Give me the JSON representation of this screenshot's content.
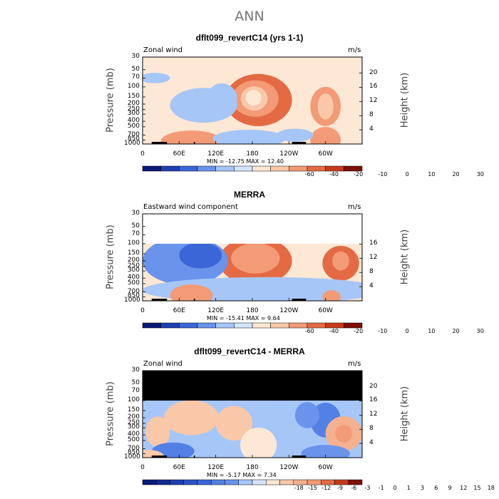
{
  "title": "ANN",
  "chart_data": [
    {
      "type": "heatmap",
      "title": "dflt099_revertC14 (yrs 1-1)",
      "corner_left": "Zonal wind",
      "corner_right": "m/s",
      "ylabel": "Pressure (mb)",
      "ylabel_right": "Height (km)",
      "xticks": [
        "0",
        "60E",
        "120E",
        "180",
        "120W",
        "60W"
      ],
      "yticks": [
        "30",
        "50",
        "70",
        "100",
        "150",
        "200",
        "250",
        "300",
        "400",
        "500",
        "700",
        "850",
        "1000"
      ],
      "height_ticks": [
        "20",
        "16",
        "12",
        "8",
        "4"
      ],
      "min_label": "MIN = -12.75   MAX =  12.40",
      "colorbar_ticks": [
        "-60",
        "-40",
        "-20",
        "-10",
        "0",
        "10",
        "20",
        "30"
      ],
      "colors": [
        "#0a1a7a",
        "#1f3fb0",
        "#3a66d8",
        "#6a93ec",
        "#a6c6f8",
        "#d3e6fc",
        "#fde7d5",
        "#f9c8a9",
        "#f29b76",
        "#e46a43",
        "#c63a1c",
        "#7d0f05"
      ],
      "no_data_top": false,
      "blobs": [
        {
          "lon": 190,
          "p": 170,
          "level": 4,
          "rlon": 55,
          "rp": 0.6
        },
        {
          "lon": 185,
          "p": 160,
          "level": 3,
          "rlon": 38,
          "rp": 0.42
        },
        {
          "lon": 183,
          "p": 160,
          "level": 2,
          "rlon": 22,
          "rp": 0.28
        },
        {
          "lon": 182,
          "p": 155,
          "level": 1,
          "rlon": 13,
          "rp": 0.18
        },
        {
          "lon": 300,
          "p": 220,
          "level": 3,
          "rlon": 25,
          "rp": 0.45
        },
        {
          "lon": 300,
          "p": 220,
          "level": 2,
          "rlon": 13,
          "rp": 0.3
        },
        {
          "lon": 100,
          "p": 210,
          "level": -1,
          "rlon": 55,
          "rp": 0.4
        },
        {
          "lon": 130,
          "p": 160,
          "level": -1,
          "rlon": 25,
          "rp": 0.35
        },
        {
          "lon": 20,
          "p": 70,
          "level": -1,
          "rlon": 25,
          "rp": 0.12
        },
        {
          "lon": 80,
          "p": 900,
          "level": 3,
          "rlon": 50,
          "rp": 0.25
        },
        {
          "lon": 175,
          "p": 800,
          "level": -1,
          "rlon": 60,
          "rp": 0.2
        },
        {
          "lon": 300,
          "p": 850,
          "level": 3,
          "rlon": 25,
          "rp": 0.3
        },
        {
          "lon": 250,
          "p": 700,
          "level": -1,
          "rlon": 30,
          "rp": 0.15
        }
      ],
      "base_level": 3
    },
    {
      "type": "heatmap",
      "title": "MERRA",
      "corner_left": "Eastward wind component",
      "corner_right": "m/s",
      "ylabel": "Pressure (mb)",
      "ylabel_right": "Height (km)",
      "xticks": [
        "0",
        "60E",
        "120E",
        "180",
        "120W",
        "60W"
      ],
      "yticks": [
        "30",
        "50",
        "70",
        "100",
        "150",
        "200",
        "250",
        "300",
        "400",
        "500",
        "700",
        "850",
        "1000"
      ],
      "height_ticks": [
        "16",
        "12",
        "8",
        "4"
      ],
      "min_label": "MIN = -15.41   MAX =   9.64",
      "colorbar_ticks": [
        "-60",
        "-40",
        "-20",
        "-10",
        "0",
        "10",
        "20",
        "30"
      ],
      "colors": [
        "#0a1a7a",
        "#1f3fb0",
        "#3a66d8",
        "#6a93ec",
        "#a6c6f8",
        "#d3e6fc",
        "#fde7d5",
        "#f9c8a9",
        "#f29b76",
        "#e46a43",
        "#c63a1c",
        "#7d0f05"
      ],
      "no_data_top": true,
      "no_data_fill": "#ffffff",
      "blobs": [
        {
          "lon": 185,
          "p": 200,
          "level": 4,
          "rlon": 60,
          "rp": 0.55
        },
        {
          "lon": 185,
          "p": 180,
          "level": 3,
          "rlon": 40,
          "rp": 0.35
        },
        {
          "lon": 325,
          "p": 220,
          "level": 4,
          "rlon": 30,
          "rp": 0.4
        },
        {
          "lon": 325,
          "p": 200,
          "level": 3,
          "rlon": 14,
          "rp": 0.22
        },
        {
          "lon": 70,
          "p": 200,
          "level": -2,
          "rlon": 70,
          "rp": 0.55
        },
        {
          "lon": 95,
          "p": 160,
          "level": -3,
          "rlon": 35,
          "rp": 0.3
        },
        {
          "lon": 200,
          "p": 650,
          "level": -1,
          "rlon": 200,
          "rp": 0.3
        },
        {
          "lon": 80,
          "p": 800,
          "level": 3,
          "rlon": 35,
          "rp": 0.25
        },
        {
          "lon": 310,
          "p": 850,
          "level": 3,
          "rlon": 15,
          "rp": 0.15
        }
      ],
      "base_level": 3
    },
    {
      "type": "heatmap",
      "title": "dflt099_revertC14 - MERRA",
      "corner_left": "Zonal wind",
      "corner_right": "m/s",
      "ylabel": "Pressure (mb)",
      "ylabel_right": "Height (km)",
      "xticks": [
        "0",
        "60E",
        "120E",
        "180",
        "120W",
        "60W"
      ],
      "yticks": [
        "30",
        "50",
        "70",
        "100",
        "150",
        "200",
        "250",
        "300",
        "400",
        "500",
        "700",
        "850",
        "1000"
      ],
      "height_ticks": [
        "20",
        "16",
        "12",
        "8",
        "4"
      ],
      "min_label": "MIN =  -5.17   MAX =   7.34",
      "colorbar_ticks": [
        "-18",
        "-15",
        "-12",
        "-9",
        "-6",
        "-3",
        "-1",
        "0",
        "1",
        "3",
        "6",
        "9",
        "12",
        "15",
        "18"
      ],
      "colors": [
        "#0a1a7a",
        "#122a92",
        "#1f3fb0",
        "#2c53c4",
        "#3a66d8",
        "#5380e4",
        "#6a93ec",
        "#a6c6f8",
        "#d3e6fc",
        "#fde7d5",
        "#f9c8a9",
        "#f4b08f",
        "#f29b76",
        "#e46a43",
        "#c63a1c",
        "#7d0f05"
      ],
      "no_data_top": true,
      "no_data_fill": "#000000",
      "blobs": [
        {
          "lon": 80,
          "p": 200,
          "level": 3,
          "rlon": 45,
          "rp": 0.4
        },
        {
          "lon": 25,
          "p": 350,
          "level": 3,
          "rlon": 20,
          "rp": 0.35
        },
        {
          "lon": 150,
          "p": 250,
          "level": 3,
          "rlon": 30,
          "rp": 0.4
        },
        {
          "lon": 300,
          "p": 220,
          "level": -2,
          "rlon": 25,
          "rp": 0.4
        },
        {
          "lon": 270,
          "p": 180,
          "level": -1,
          "rlon": 20,
          "rp": 0.3
        },
        {
          "lon": 330,
          "p": 380,
          "level": 4,
          "rlon": 30,
          "rp": 0.4
        },
        {
          "lon": 330,
          "p": 380,
          "level": 5,
          "rlon": 14,
          "rp": 0.2
        },
        {
          "lon": 50,
          "p": 770,
          "level": -2,
          "rlon": 35,
          "rp": 0.2
        },
        {
          "lon": 190,
          "p": 600,
          "level": 2,
          "rlon": 30,
          "rp": 0.4
        },
        {
          "lon": 300,
          "p": 850,
          "level": -1,
          "rlon": 40,
          "rp": 0.2
        },
        {
          "lon": 10,
          "p": 950,
          "level": 3,
          "rlon": 25,
          "rp": 0.15
        }
      ],
      "base_level": 2
    }
  ]
}
